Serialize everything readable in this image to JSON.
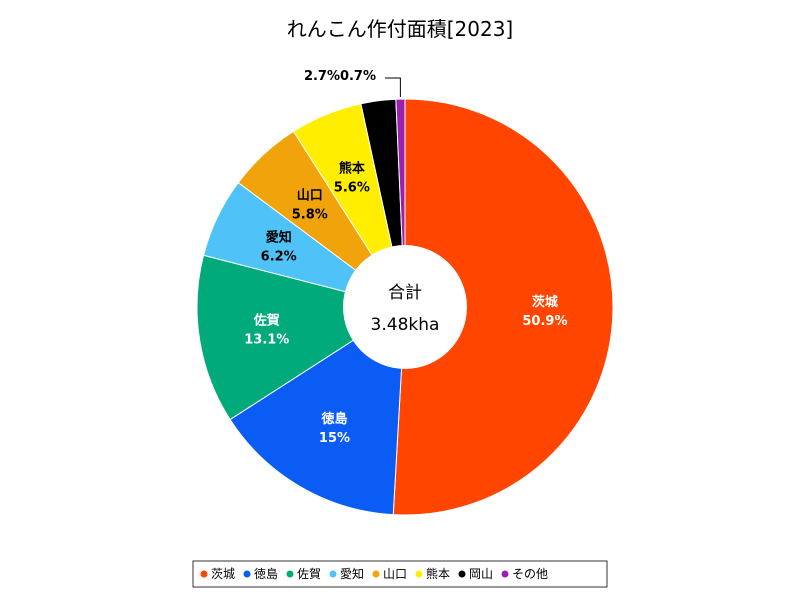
{
  "chart_data": {
    "type": "pie",
    "title": "れんこん作付面積[2023]",
    "center_label": "合計",
    "center_value": "3.48kha",
    "slices": [
      {
        "name": "茨城",
        "value": 50.9,
        "label": "50.9%",
        "color": "#ff4500",
        "text_color": "#ffffff",
        "show_name": true
      },
      {
        "name": "徳島",
        "value": 15.0,
        "label": "15%",
        "color": "#0a5cf5",
        "text_color": "#ffffff",
        "show_name": true
      },
      {
        "name": "佐賀",
        "value": 13.1,
        "label": "13.1%",
        "color": "#00aa7a",
        "text_color": "#ffffff",
        "show_name": true
      },
      {
        "name": "愛知",
        "value": 6.2,
        "label": "6.2%",
        "color": "#4fc3f7",
        "text_color": "#000000",
        "show_name": true
      },
      {
        "name": "山口",
        "value": 5.8,
        "label": "5.8%",
        "color": "#f0a30a",
        "text_color": "#000000",
        "show_name": true
      },
      {
        "name": "熊本",
        "value": 5.6,
        "label": "5.6%",
        "color": "#ffee00",
        "text_color": "#000000",
        "show_name": true
      },
      {
        "name": "岡山",
        "value": 2.7,
        "label": "2.7%",
        "color": "#000000",
        "text_color": "#000000",
        "show_name": false
      },
      {
        "name": "その他",
        "value": 0.7,
        "label": "0.7%",
        "color": "#9b1fb0",
        "text_color": "#000000",
        "show_name": false
      }
    ],
    "legend_position": "bottom"
  }
}
